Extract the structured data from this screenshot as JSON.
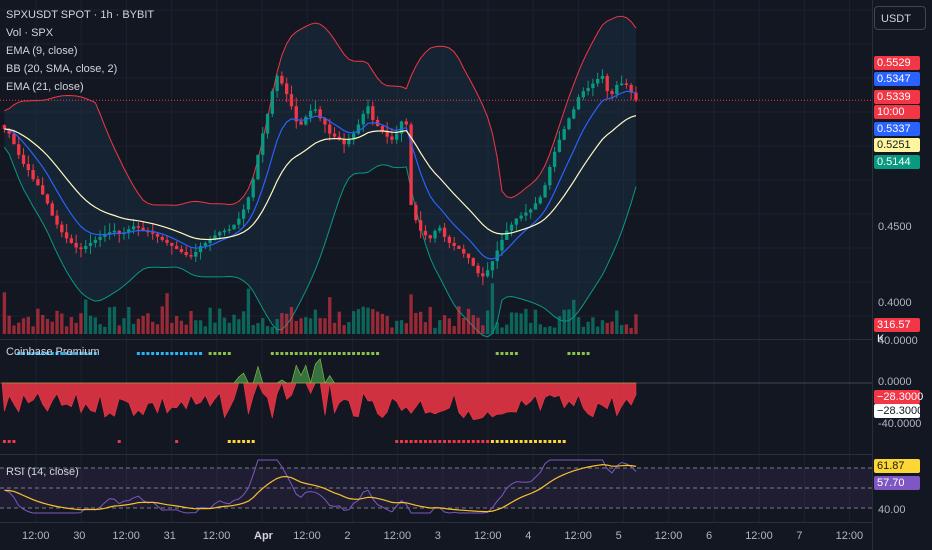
{
  "legend": {
    "symbol": "SPXUSDT SPOT · 1h · BYBIT",
    "vol": "Vol · SPX",
    "ema9": "EMA (9, close)",
    "bb": "BB (20, SMA, close, 2)",
    "ema21": "EMA (21, close)"
  },
  "currency_button": "USDT",
  "price_axis": {
    "labels": [
      {
        "text": "0.4500",
        "price": 0.45
      },
      {
        "text": "0.4000",
        "price": 0.4
      }
    ],
    "tags": [
      {
        "text": "0.5529",
        "color": "#f23645",
        "dark": false,
        "price": 0.5529
      },
      {
        "text": "0.5347",
        "color": "#2962ff",
        "dark": false,
        "price": 0.5347
      },
      {
        "text": "0.5339",
        "color": "#f23645",
        "dark": false,
        "price": 0.5339
      },
      {
        "text": "10:00",
        "color": "#f23645",
        "dark": false,
        "price": 0.5339
      },
      {
        "text": "0.5337",
        "color": "#2962ff",
        "dark": false,
        "price": 0.5337
      },
      {
        "text": "0.5251",
        "color": "#fff59d",
        "dark": true,
        "price": 0.5251
      },
      {
        "text": "0.5144",
        "color": "#089981",
        "dark": false,
        "price": 0.5144
      }
    ],
    "volume_tag": {
      "text": "316.57 K",
      "color": "#f23645"
    }
  },
  "coinbase_pane": {
    "title": "Coinbase Premium",
    "axis": [
      {
        "text": "40.0000",
        "value": 40
      },
      {
        "text": "0.0000",
        "value": 0
      },
      {
        "text": "-40.0000",
        "value": -40
      }
    ],
    "tags": [
      {
        "text": "−28.3000",
        "color": "#f23645",
        "dark": false
      },
      {
        "text": "−28.3000",
        "color": "#ffffff",
        "dark": true
      }
    ]
  },
  "rsi_pane": {
    "title": "RSI (14, close)",
    "axis": [
      {
        "text": "40.00",
        "value": 40
      }
    ],
    "tags": [
      {
        "text": "61.87",
        "color": "#fdd835",
        "dark": true,
        "value": 61.87
      },
      {
        "text": "57.70",
        "color": "#7e57c2",
        "dark": false,
        "value": 57.7
      }
    ]
  },
  "time_axis": [
    "12:00",
    "30",
    "12:00",
    "31",
    "12:00",
    "Apr",
    "12:00",
    "2",
    "12:00",
    "3",
    "12:00",
    "4",
    "12:00",
    "5",
    "12:00",
    "6",
    "12:00",
    "7",
    "12:00"
  ],
  "colors": {
    "up": "#089981",
    "down": "#f23645",
    "ema9": "#2962ff",
    "ema21": "#fff9c4",
    "bb_upper": "#f23645",
    "bb_lower": "#089981",
    "bb_fill": "#1e3a4f",
    "rsi": "#7e57c2",
    "rsi_ma": "#fbc02d"
  },
  "chart_data": {
    "type": "candlestick",
    "price_range": [
      0.38,
      0.6
    ],
    "close": [
      0.515,
      0.512,
      0.505,
      0.498,
      0.492,
      0.488,
      0.482,
      0.478,
      0.472,
      0.466,
      0.458,
      0.452,
      0.447,
      0.443,
      0.44,
      0.437,
      0.436,
      0.438,
      0.44,
      0.442,
      0.444,
      0.446,
      0.447,
      0.448,
      0.446,
      0.447,
      0.449,
      0.451,
      0.45,
      0.448,
      0.447,
      0.446,
      0.444,
      0.442,
      0.44,
      0.438,
      0.436,
      0.434,
      0.432,
      0.431,
      0.434,
      0.438,
      0.44,
      0.442,
      0.445,
      0.447,
      0.448,
      0.449,
      0.452,
      0.456,
      0.462,
      0.47,
      0.482,
      0.498,
      0.512,
      0.525,
      0.54,
      0.55,
      0.545,
      0.538,
      0.53,
      0.52,
      0.518,
      0.523,
      0.527,
      0.528,
      0.522,
      0.518,
      0.512,
      0.51,
      0.508,
      0.505,
      0.508,
      0.512,
      0.518,
      0.525,
      0.53,
      0.521,
      0.517,
      0.514,
      0.51,
      0.508,
      0.512,
      0.52,
      0.518,
      0.465,
      0.455,
      0.448,
      0.445,
      0.443,
      0.448,
      0.45,
      0.444,
      0.44,
      0.438,
      0.436,
      0.433,
      0.43,
      0.425,
      0.42,
      0.418,
      0.422,
      0.428,
      0.435,
      0.442,
      0.448,
      0.452,
      0.456,
      0.458,
      0.46,
      0.462,
      0.466,
      0.47,
      0.478,
      0.49,
      0.5,
      0.508,
      0.515,
      0.522,
      0.528,
      0.536,
      0.54,
      0.542,
      0.545,
      0.548,
      0.55,
      0.54,
      0.538,
      0.544,
      0.545,
      0.544,
      0.539,
      0.534
    ],
    "volume_last": "316.57 K",
    "rsi_last": 61.87,
    "rsi_ma_last": 57.7,
    "coinbase_premium_last": -28.3
  }
}
